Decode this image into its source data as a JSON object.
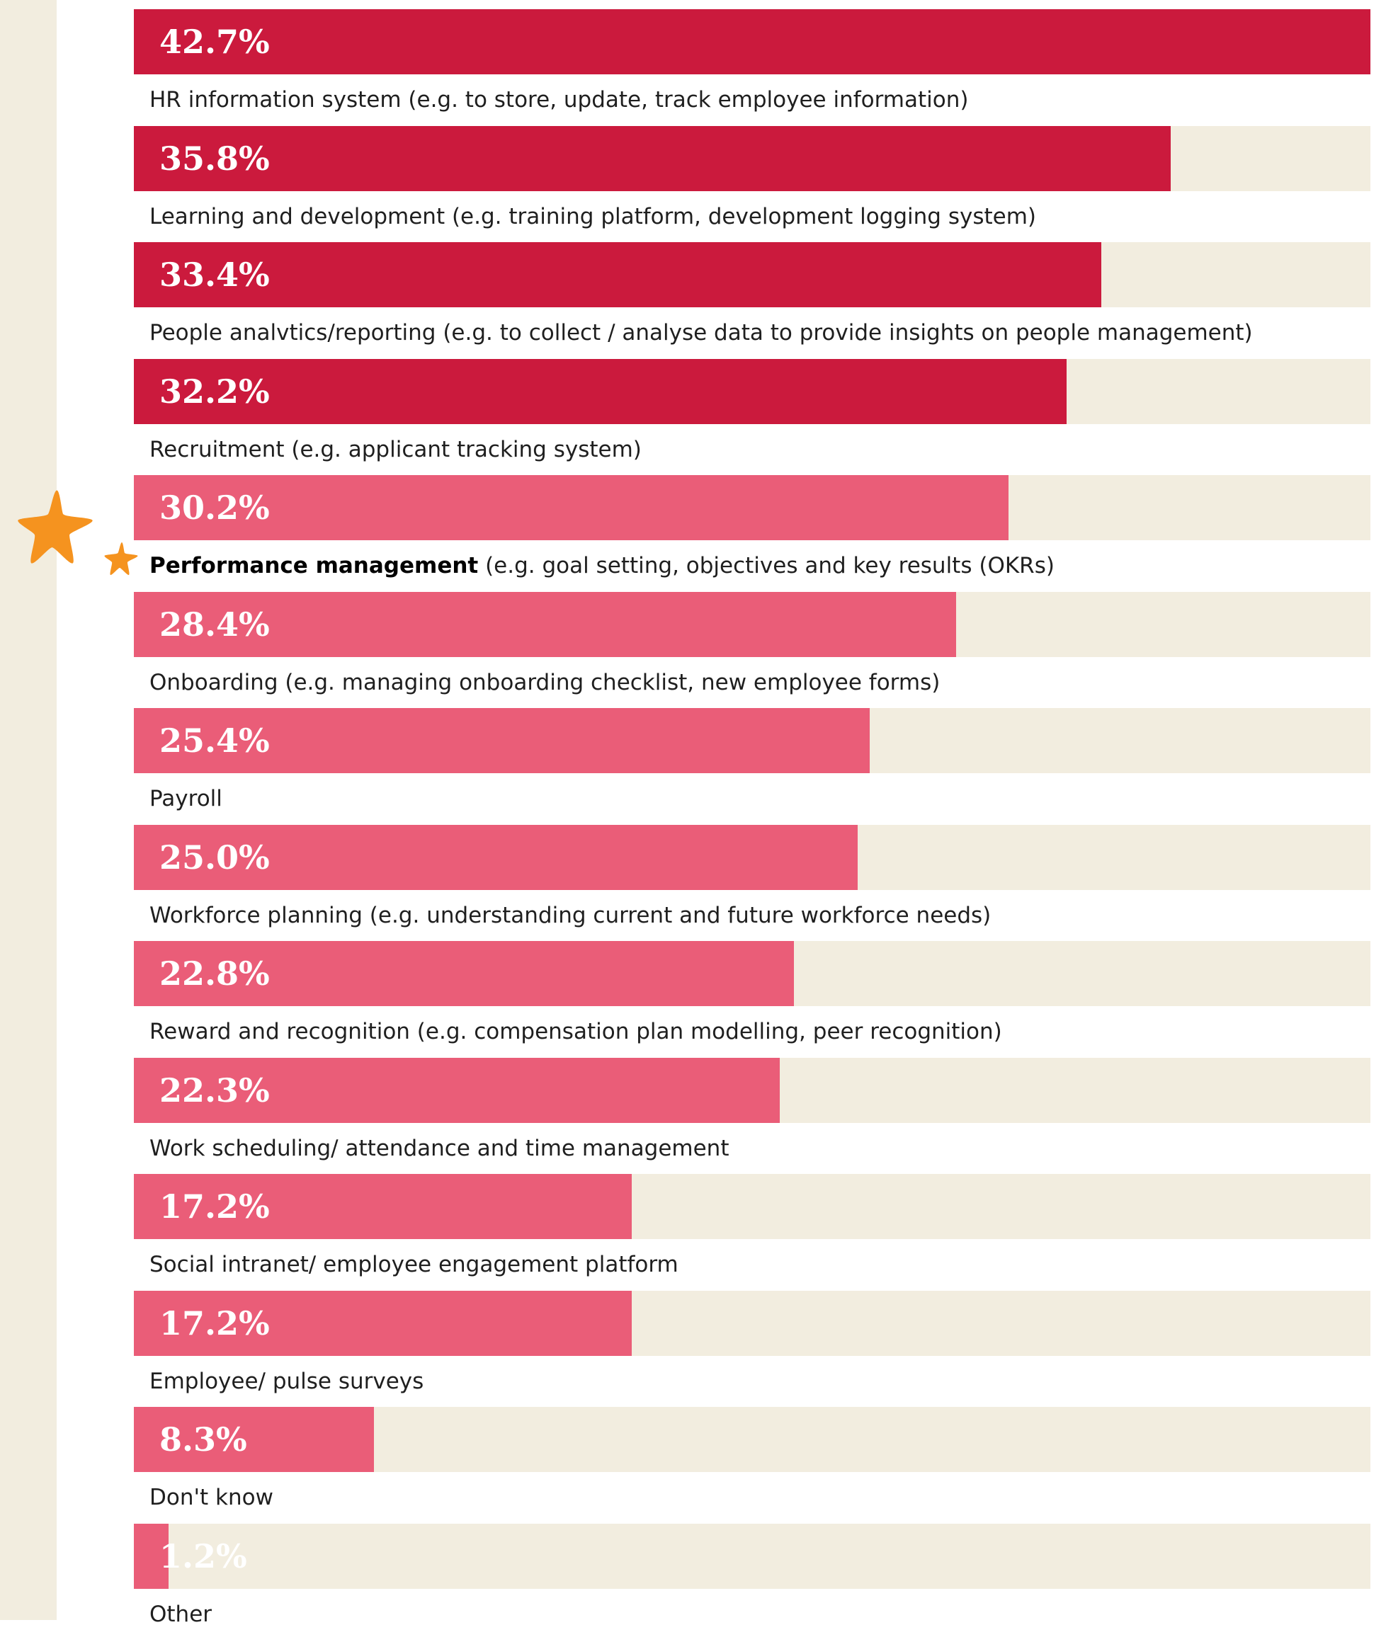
{
  "colors": {
    "background": "#ffffff",
    "side_strip": "#f2eddf",
    "track": "#f2eddf",
    "bar_dark": "#cb1a3d",
    "bar_light": "#ea5d78",
    "star": "#f5931f",
    "value_text": "#ffffff",
    "label_text": "#1f1f1f"
  },
  "icons": {
    "star_large": "star-icon",
    "star_small": "star-icon"
  },
  "chart_data": {
    "type": "bar",
    "orientation": "horizontal",
    "xlim": [
      0,
      42.7
    ],
    "grid": false,
    "categories": [
      "HR information system (e.g. to store, update, track employee information)",
      "Learning and development (e.g. training platform, development logging system)",
      "People analvtics/reporting (e.g. to collect / analyse data to provide insights on people management)",
      "Recruitment (e.g. applicant tracking system)",
      "Performance management (e.g. goal setting, objectives and key results (OKRs)",
      "Onboarding (e.g. managing onboarding checklist, new employee forms)",
      "Payroll",
      "Workforce planning (e.g. understanding current and future workforce needs)",
      "Reward and recognition (e.g. compensation plan modelling, peer recognition)",
      "Work scheduling/ attendance and time management",
      "Social intranet/ employee engagement platform",
      "Employee/ pulse surveys",
      "Don't know",
      "Other"
    ],
    "bars": [
      {
        "value": 42.7,
        "label": "42.7%",
        "tone": "dark",
        "bold": "",
        "rest": "HR information system (e.g. to store, update, track employee information)"
      },
      {
        "value": 35.8,
        "label": "35.8%",
        "tone": "dark",
        "bold": "",
        "rest": "Learning and development (e.g. training platform, development logging system)"
      },
      {
        "value": 33.4,
        "label": "33.4%",
        "tone": "dark",
        "bold": "",
        "rest": "People analvtics/reporting (e.g. to collect / analyse data to provide insights on people management)"
      },
      {
        "value": 32.2,
        "label": "32.2%",
        "tone": "dark",
        "bold": "",
        "rest": "Recruitment (e.g. applicant tracking system)"
      },
      {
        "value": 30.2,
        "label": "30.2%",
        "tone": "light",
        "bold": "Performance management",
        "rest": " (e.g. goal setting, objectives and key results (OKRs)",
        "highlighted": true
      },
      {
        "value": 28.4,
        "label": "28.4%",
        "tone": "light",
        "bold": "",
        "rest": "Onboarding (e.g. managing onboarding checklist, new employee forms)"
      },
      {
        "value": 25.4,
        "label": "25.4%",
        "tone": "light",
        "bold": "",
        "rest": "Payroll"
      },
      {
        "value": 25.0,
        "label": "25.0%",
        "tone": "light",
        "bold": "",
        "rest": "Workforce planning (e.g. understanding current and future workforce needs)"
      },
      {
        "value": 22.8,
        "label": "22.8%",
        "tone": "light",
        "bold": "",
        "rest": "Reward and recognition (e.g. compensation plan modelling, peer recognition)"
      },
      {
        "value": 22.3,
        "label": "22.3%",
        "tone": "light",
        "bold": "",
        "rest": "Work scheduling/ attendance and time management"
      },
      {
        "value": 17.2,
        "label": "17.2%",
        "tone": "light",
        "bold": "",
        "rest": "Social intranet/ employee engagement platform"
      },
      {
        "value": 17.2,
        "label": "17.2%",
        "tone": "light",
        "bold": "",
        "rest": "Employee/ pulse surveys"
      },
      {
        "value": 8.3,
        "label": "8.3%",
        "tone": "light",
        "bold": "",
        "rest": "Don't know"
      },
      {
        "value": 1.2,
        "label": "1.2%",
        "tone": "light",
        "bold": "",
        "rest": "Other"
      }
    ]
  }
}
